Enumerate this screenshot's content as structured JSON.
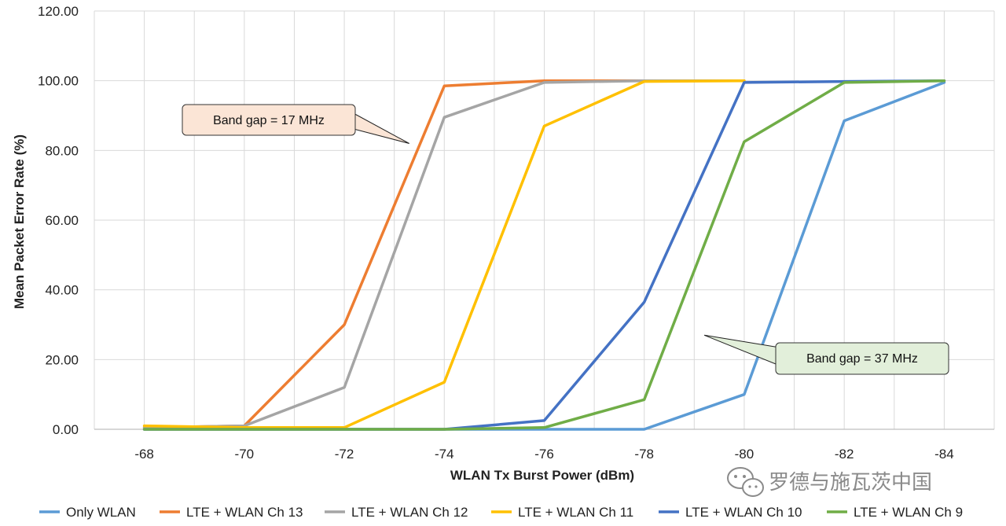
{
  "chart_data": {
    "type": "line",
    "title": "",
    "xlabel": "WLAN Tx Burst Power (dBm)",
    "ylabel": "Mean Packet Error Rate (%)",
    "x": [
      -68,
      -70,
      -72,
      -74,
      -76,
      -78,
      -80,
      -82,
      -84
    ],
    "x_tick_labels": [
      "-68",
      "-70",
      "-72",
      "-74",
      "-76",
      "-78",
      "-80",
      "-82",
      "-84"
    ],
    "ylim": [
      0,
      120
    ],
    "y_ticks": [
      0,
      20,
      40,
      60,
      80,
      100,
      120
    ],
    "y_tick_labels": [
      "0.00",
      "20.00",
      "40.00",
      "60.00",
      "80.00",
      "100.00",
      "120.00"
    ],
    "grid": "vertical and horizontal",
    "legend_position": "bottom",
    "series": [
      {
        "name": "Only WLAN",
        "color": "#5b9bd5",
        "values": [
          0,
          0,
          0,
          0,
          0,
          0,
          10,
          88.5,
          99.5
        ]
      },
      {
        "name": "LTE + WLAN Ch 13",
        "color": "#ed7d31",
        "values": [
          0.5,
          1,
          30,
          98.5,
          100,
          100,
          100,
          null,
          null
        ]
      },
      {
        "name": "LTE + WLAN Ch 12",
        "color": "#a5a5a5",
        "values": [
          0.5,
          1,
          12,
          89.5,
          99.5,
          100,
          100,
          null,
          null
        ]
      },
      {
        "name": "LTE + WLAN Ch 11",
        "color": "#ffc000",
        "values": [
          1,
          0.5,
          0.5,
          13.5,
          87,
          99.8,
          100,
          null,
          null
        ]
      },
      {
        "name": "LTE + WLAN Ch 10",
        "color": "#4472c4",
        "values": [
          0,
          0,
          0,
          0,
          2.5,
          36.5,
          99.5,
          99.8,
          100
        ]
      },
      {
        "name": "LTE + WLAN Ch 9",
        "color": "#70ad47",
        "values": [
          0,
          0,
          0,
          0,
          0.5,
          8.5,
          82.5,
          99.5,
          100
        ]
      }
    ],
    "annotations": [
      {
        "text": "Band gap = 17 MHz",
        "fill": "#fbe5d6",
        "points_to": {
          "x": -73.3,
          "y": 82
        }
      },
      {
        "text": "Band gap = 37 MHz",
        "fill": "#e2efda",
        "points_to": {
          "x": -79.2,
          "y": 27
        }
      }
    ]
  },
  "watermark": {
    "text": "罗德与施瓦茨中国",
    "icon": "wechat-icon"
  }
}
